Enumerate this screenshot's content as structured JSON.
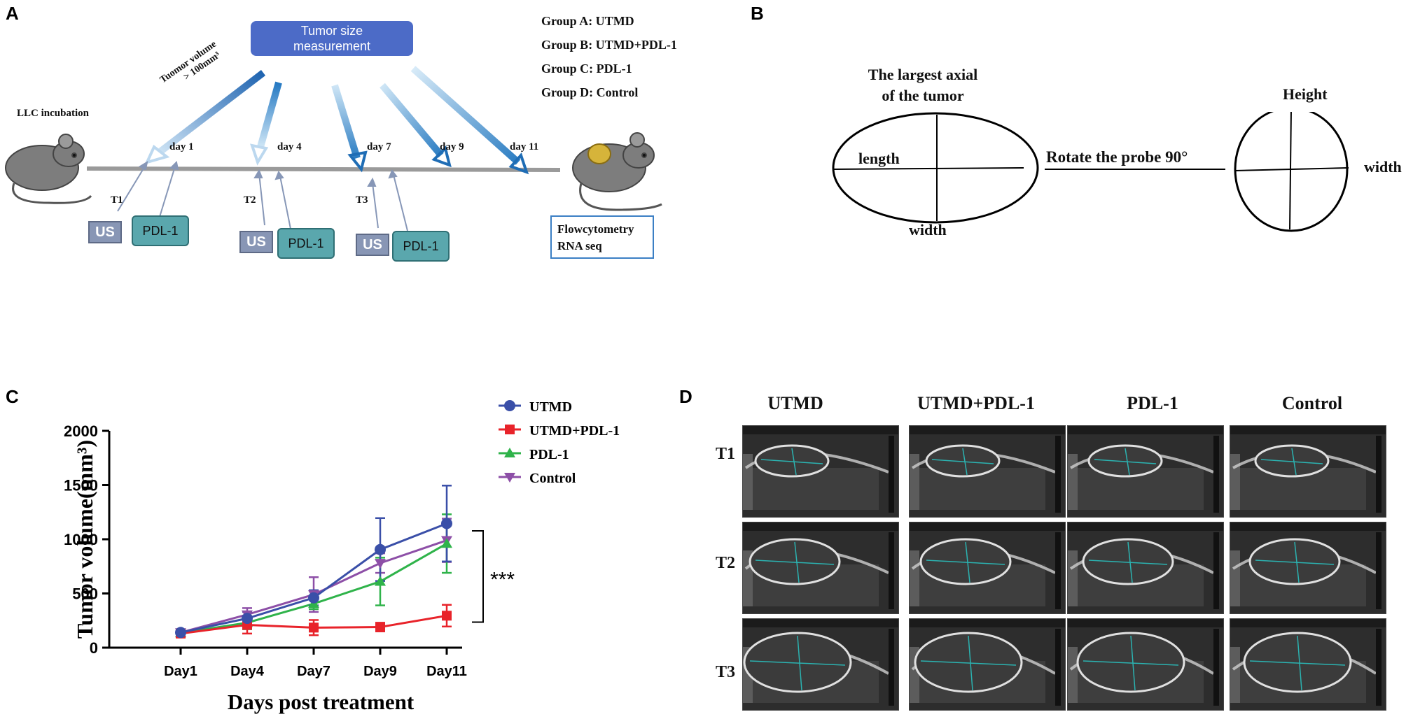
{
  "panels": {
    "a": "A",
    "b": "B",
    "c": "C",
    "d": "D"
  },
  "panel_a": {
    "tumor_box": "Tumor size measurement",
    "arrow_label_line1": "Tuomor volume",
    "arrow_label_line2": "> 100mm³",
    "llc_label": "LLC incubation",
    "days": [
      "day 1",
      "day 4",
      "day 7",
      "day 9",
      "day 11"
    ],
    "timepoints": [
      "T1",
      "T2",
      "T3"
    ],
    "us_label": "US",
    "pdl_label": "PDL-1",
    "groups": [
      "Group A: UTMD",
      "Group B: UTMD+PDL-1",
      "Group C: PDL-1",
      "Group D: Control"
    ],
    "flow_line1": "Flowcytometry",
    "flow_line2": "RNA seq"
  },
  "panel_b": {
    "title_line1": "The largest axial",
    "title_line2": "of the tumor",
    "length": "length",
    "width_bottom": "width",
    "rotate": "Rotate the probe 90°",
    "height": "Height",
    "width_right": "width"
  },
  "chart_data": {
    "type": "line",
    "title": "",
    "xlabel": "Days post treatment",
    "ylabel": "Tumor volume(mm³)",
    "categories": [
      "Day1",
      "Day4",
      "Day7",
      "Day9",
      "Day11"
    ],
    "ylim": [
      0,
      2000
    ],
    "yticks": [
      "0",
      "500",
      "1000",
      "1500",
      "2000"
    ],
    "series": [
      {
        "name": "UTMD",
        "color": "#3a4fa8",
        "marker": "circle",
        "values": [
          140,
          270,
          460,
          905,
          1145
        ],
        "errors": [
          20,
          60,
          70,
          290,
          350
        ]
      },
      {
        "name": "UTMD+PDL-1",
        "color": "#e8232a",
        "marker": "square",
        "values": [
          130,
          210,
          185,
          190,
          295
        ],
        "errors": [
          20,
          80,
          70,
          40,
          100
        ]
      },
      {
        "name": "PDL-1",
        "color": "#2fb34a",
        "marker": "triangle-up",
        "values": [
          135,
          230,
          405,
          610,
          960
        ],
        "errors": [
          20,
          60,
          50,
          220,
          270
        ]
      },
      {
        "name": "Control",
        "color": "#8d4fa7",
        "marker": "triangle-down",
        "values": [
          140,
          305,
          490,
          780,
          990
        ],
        "errors": [
          20,
          60,
          160,
          90,
          200
        ]
      }
    ],
    "significance": "***"
  },
  "panel_d": {
    "columns": [
      "UTMD",
      "UTMD+PDL-1",
      "PDL-1",
      "Control"
    ],
    "rows": [
      "T1",
      "T2",
      "T3"
    ]
  }
}
